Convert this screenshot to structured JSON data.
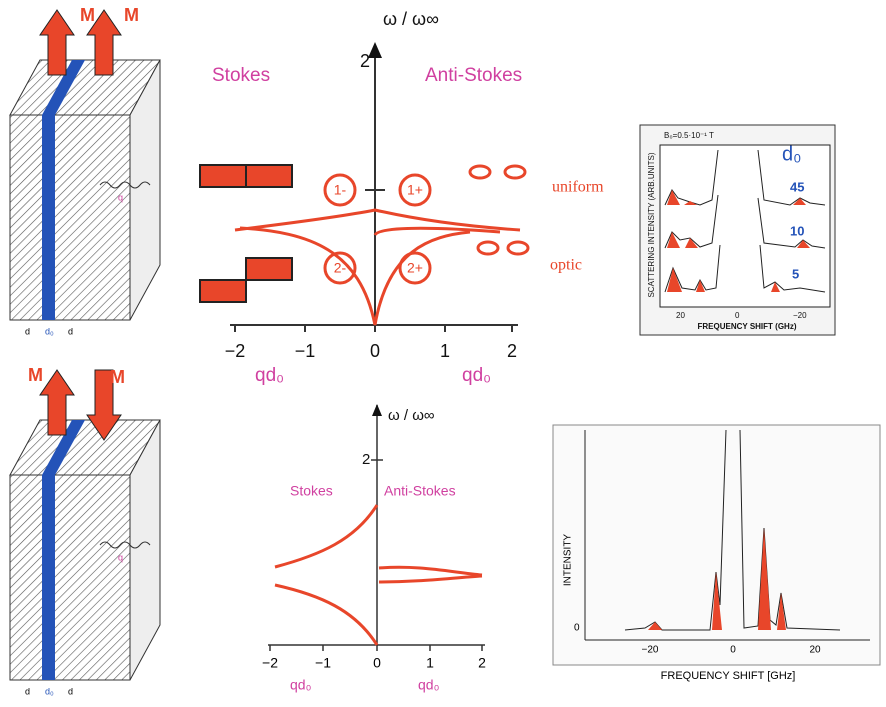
{
  "top_left_film": {
    "magnetization": [
      "M",
      "M"
    ],
    "wave": "q",
    "dims": [
      "d",
      "d₀",
      "d"
    ]
  },
  "top_plot": {
    "y_label": "ω / ω∞",
    "y_tick": "2",
    "stokes": "Stokes",
    "anti_stokes": "Anti-Stokes",
    "modes": [
      "1-",
      "1+",
      "2-",
      "2+"
    ],
    "uniform": "uniform",
    "optic": "optic",
    "x_ticks": [
      "−2",
      "−1",
      "0",
      "1",
      "2"
    ],
    "x_label_left": "qd₀",
    "x_label_right": "qd₀"
  },
  "top_spectrum": {
    "field": "B₀=0.5·10⁻¹ T",
    "y_label": "SCATTERING INTENSITY (ARB.UNITS)",
    "d_label": "d₀",
    "thicknesses": [
      "45",
      "10",
      "5"
    ],
    "x_ticks": [
      "20",
      "0",
      "−20"
    ],
    "x_label": "FREQUENCY SHIFT (GHz)"
  },
  "bottom_left_film": {
    "magnetization": [
      "M",
      "M"
    ],
    "wave": "q",
    "dims": [
      "d",
      "d₀",
      "d"
    ]
  },
  "bottom_plot": {
    "y_label": "ω / ω∞",
    "y_tick": "2",
    "stokes": "Stokes",
    "anti_stokes": "Anti-Stokes",
    "x_ticks": [
      "−2",
      "−1",
      "0",
      "1",
      "2"
    ],
    "x_label_left": "qd₀",
    "x_label_right": "qd₀"
  },
  "bottom_spectrum": {
    "y_label": "INTENSITY",
    "y_tick": "0",
    "x_ticks": [
      "−20",
      "0",
      "20"
    ],
    "x_label": "FREQUENCY SHIFT [GHz]"
  }
}
